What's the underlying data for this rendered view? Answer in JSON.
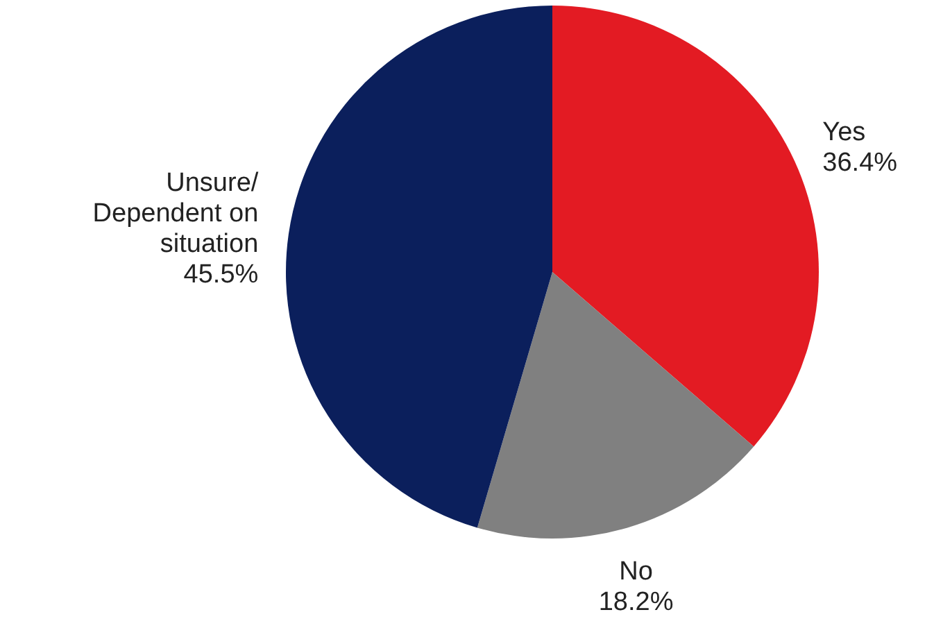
{
  "chart_data": {
    "type": "pie",
    "categories": [
      "Yes",
      "No",
      "Unsure/ Dependent on situation"
    ],
    "values": [
      36.4,
      18.2,
      45.5
    ],
    "colors": [
      "#e31b23",
      "#808080",
      "#0b1f5c"
    ],
    "value_labels": [
      "36.4%",
      "18.2%",
      "45.5%"
    ],
    "legend": false
  }
}
